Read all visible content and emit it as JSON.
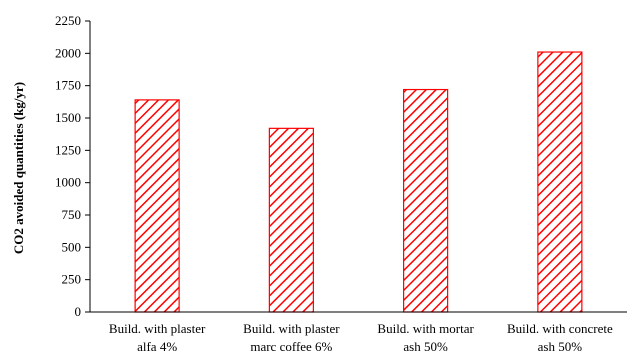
{
  "chart_data": {
    "type": "bar",
    "title": "",
    "xlabel": "",
    "ylabel": "CO2 avoided quantities (kg/yr)",
    "ylim": [
      0,
      2250
    ],
    "yticks": [
      0,
      250,
      500,
      750,
      1000,
      1250,
      1500,
      1750,
      2000,
      2250
    ],
    "grid": false,
    "legend": "none",
    "categories": [
      [
        "Build. with plaster",
        "alfa 4%"
      ],
      [
        "Build. with plaster",
        "marc coffee 6%"
      ],
      [
        "Build. with mortar",
        "ash 50%"
      ],
      [
        "Build. with concrete",
        "ash 50%"
      ]
    ],
    "values": [
      1640,
      1420,
      1720,
      2010
    ],
    "bar_style": {
      "fill": "hatched",
      "color": "#ff0000"
    }
  }
}
